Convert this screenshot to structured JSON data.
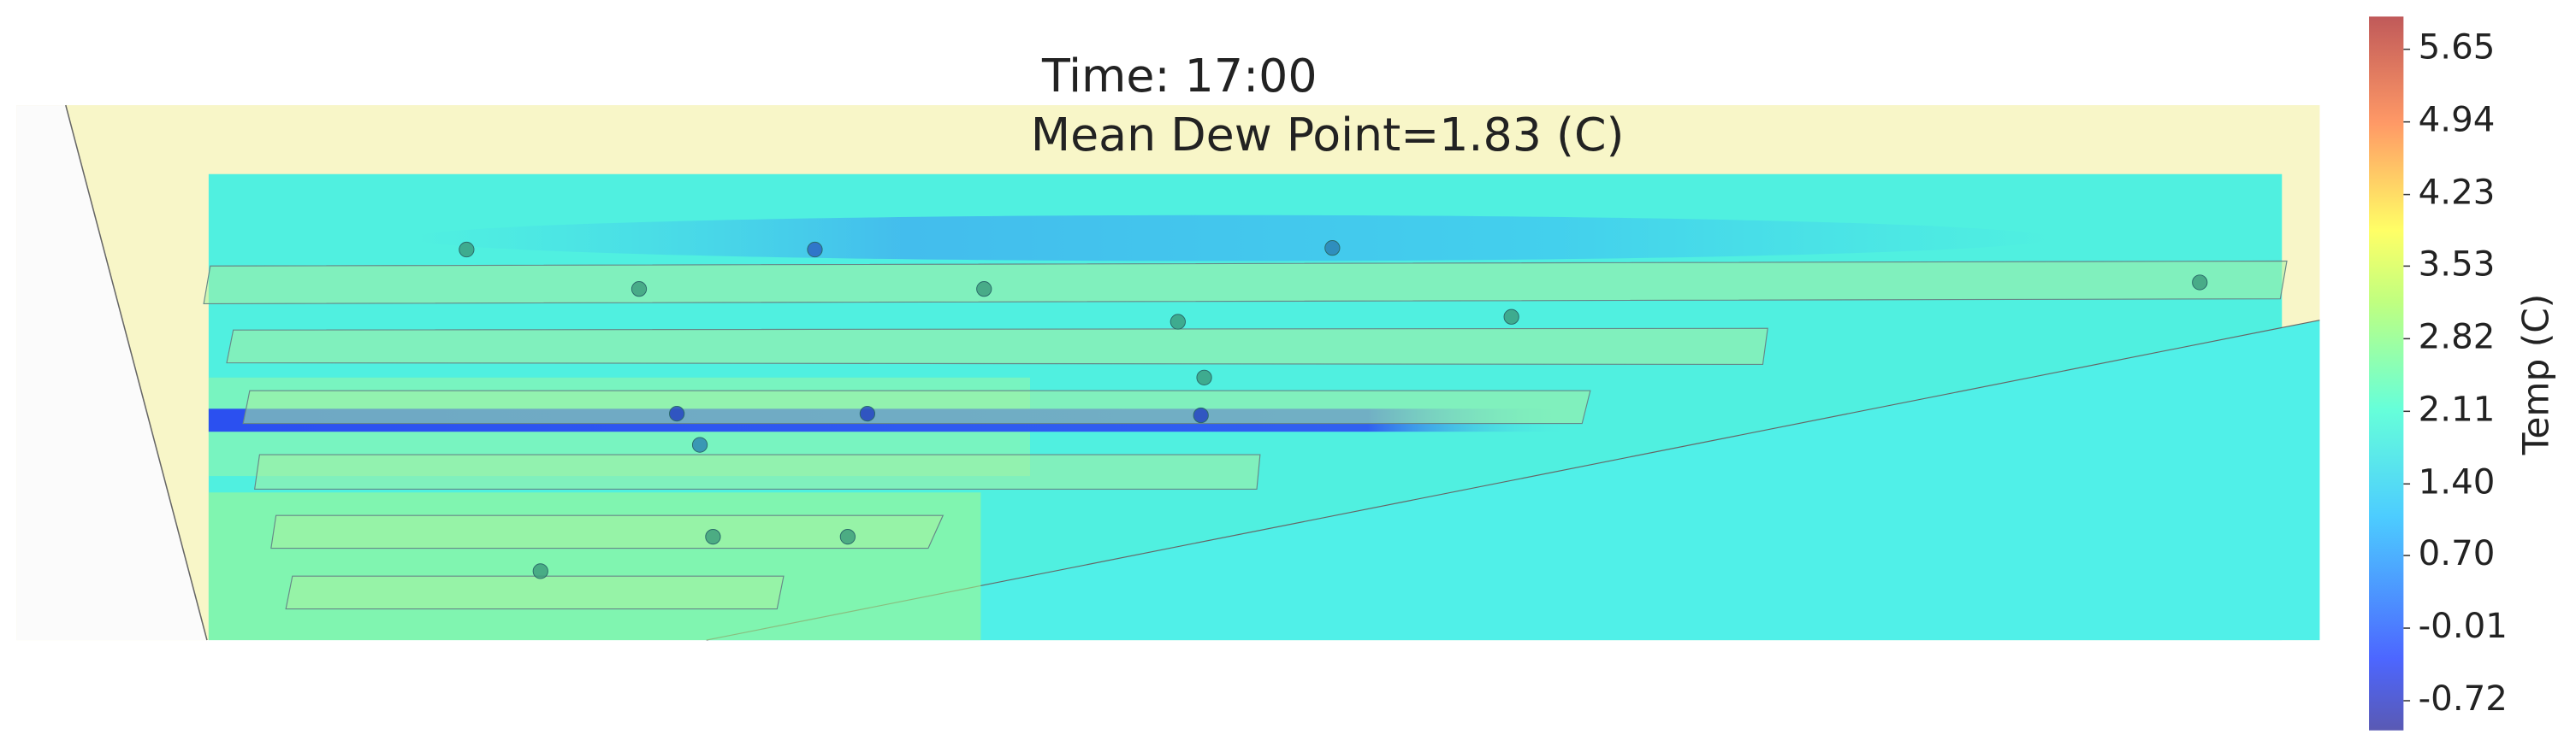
{
  "chart_data": {
    "type": "contour",
    "title": "Time: 17:00",
    "subtitle": "Mean Dew Point=1.83 (C)",
    "colorbar": {
      "label": "Temp (C)",
      "lim": [
        -1.01,
        5.97
      ],
      "ticks": [
        5.65,
        4.94,
        4.23,
        3.53,
        2.82,
        2.11,
        {
          "value": 1.4,
          "label": "1.40"
        },
        {
          "value": 0.7,
          "label": "0.70"
        },
        -0.01,
        -0.72
      ]
    }
  }
}
